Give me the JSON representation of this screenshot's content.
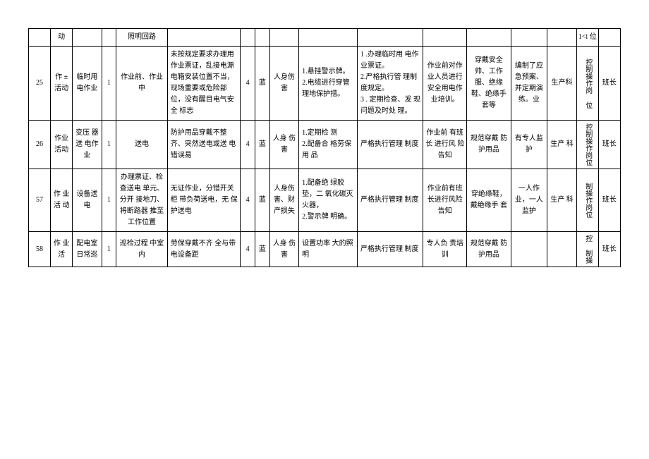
{
  "header_row": {
    "c1": "",
    "c2": "动",
    "c3": "",
    "c4": "",
    "c5": "照明回路",
    "c6": "",
    "c7": "",
    "c8": "",
    "c9": "",
    "c10": "",
    "c11": "",
    "c12": "",
    "c13": "",
    "c14": "",
    "c15": "",
    "c16": "1<i 位",
    "c17": ""
  },
  "rows": [
    {
      "id": "25",
      "c2": "作 ± 活动",
      "c3": "临时用电作业",
      "c4": "1",
      "c5": "作业前、作业中",
      "c6": "未按规定要求办理用作业票证，乱接电源电箱安装位置不当，现场重要或危险部位，没有醒目电气安全 标志",
      "c7": "4",
      "c8": "蓝",
      "c9": "人身伤害",
      "c10": "1.悬挂警示牌。\n2.电缆进行穿管理地保护措。",
      "c11": "1 .办理临时用 电作业票证。\n2.严格执行管 理制度规定。\n3 . 定期检查、发 现问题及时处 理。",
      "c12": "作业前对作业人员进行安全用电作 业培训。",
      "c13": "穿戴安全帅、工作服、绝缘鞋、绝缘手套等",
      "c14": "编制了应急预案、并定期演练。业",
      "c15": "生产科",
      "c16": "控制操作岗 位",
      "c17": "班长"
    },
    {
      "id": "26",
      "c2": "作业活动",
      "c3": "变压 器送 电作业",
      "c4": "1",
      "c5": "送电",
      "c6": "防护用品穿戴不整齐、突然送电或送 电错误易",
      "c7": "4",
      "c8": "蓝",
      "c9": "人身 伤害",
      "c10": "1.定期检 测\n2.配备合 格劳保用 品",
      "c11": "严格执行管理 制度",
      "c12": "作业前 有班长 进行风 险告知",
      "c13": "规范穿戴 防护用品",
      "c14": "有专人监护",
      "c15": "生产 科",
      "c16": "控制操作岗位",
      "c17": "班长"
    },
    {
      "id": "57",
      "c2": "作 业活 动",
      "c3": "设备送电",
      "c4": "1",
      "c5": "办理票证、检查送电 单元、分开 接地刀、将断路器 推至工作位置",
      "c6": "无证作业，分错开关柜 带负荷送电，无 保护送电",
      "c7": "4",
      "c8": "蓝",
      "c9": "人身伤害、财产损失",
      "c10": "1.配备绝 绿胶垫，二 氧化碳灭 火器，\n2.警示牌 明确。",
      "c11": "严格执行管理 制度",
      "c12": "作业前有班长进行风险告知",
      "c13": "穿绝缘鞋，戴绝缘手 套",
      "c14": "一人作业，一人监护",
      "c15": "生产 科",
      "c16": "制操作岗位",
      "c17": "班长"
    },
    {
      "id": "58",
      "c2": "作 业活",
      "c3": "配电室日常巡",
      "c4": "1",
      "c5": "巡检过程 中室内",
      "c6": "劳保穿戴不齐 全与带电设备距",
      "c7": "4",
      "c8": "蓝",
      "c9": "人身 伤害",
      "c10": "设置功率 大的照明",
      "c11": "严格执行管理 制度",
      "c12": "专人负 责培训",
      "c13": "规范穿戴 防护用品",
      "c14": "",
      "c15": "",
      "c16": "控 制操",
      "c17": "班长"
    }
  ],
  "col_widths": [
    "30",
    "30",
    "40",
    "20",
    "70",
    "100",
    "20",
    "20",
    "40",
    "80",
    "90",
    "60",
    "60",
    "50",
    "40",
    "30",
    "30"
  ]
}
